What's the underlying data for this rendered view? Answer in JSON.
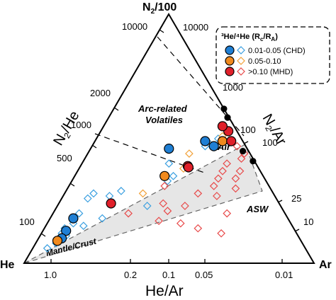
{
  "chart_data": {
    "type": "scatter",
    "subtype": "ternary",
    "vertices": {
      "top": "N₂/100",
      "left": "He",
      "right": "Ar"
    },
    "axis_labels": {
      "left": "N₂/He",
      "right": "N₂/Ar",
      "bottom": "He/Ar"
    },
    "left_ticks": [
      "10000",
      "2000",
      "1000",
      "500",
      "100"
    ],
    "right_ticks": [
      "100",
      "25",
      "10"
    ],
    "bottom_ticks": [
      "1.0",
      "0.2",
      "0.1",
      "0.05",
      "0.01"
    ],
    "inner_ticks": [
      "10000",
      "1000",
      "100"
    ],
    "region_labels": {
      "arc": [
        "Arc-related",
        "Volatiles"
      ],
      "mantle": "Mantle/Crust",
      "air": "Air",
      "asw": "ASW"
    },
    "legend": {
      "title_html": "³He/⁴He (R",
      "title_sub1": "c",
      "title_mid": "/R",
      "title_sub2": "A",
      "title_end": ")",
      "position": "top-right",
      "entries": [
        {
          "label": "0.01-0.05 (CHD)",
          "color": "#1f7fd4",
          "open_color": "#3a9fe0"
        },
        {
          "label": "0.05-0.10",
          "color": "#f08a1e",
          "open_color": "#f2a23a"
        },
        {
          "label": ">0.10 (MHD)",
          "color": "#e0202a",
          "open_color": "#e84a4a"
        }
      ]
    },
    "colors": {
      "chd": "#1f7fd4",
      "chd_open": "#3a9fe0",
      "mid": "#f08a1e",
      "mid_open": "#f2a23a",
      "mhd": "#e0202a",
      "mhd_open": "#e84a4a",
      "field": "#e6e6e6",
      "air_asw": "#000000"
    },
    "reference_points": [
      {
        "name": "Air",
        "top": 0.62,
        "left": 0.0,
        "right": 0.38
      },
      {
        "name": "",
        "top": 0.585,
        "left": 0.005,
        "right": 0.41
      },
      {
        "name": "",
        "top": 0.45,
        "left": 0.02,
        "right": 0.53
      },
      {
        "name": "ASW",
        "top": 0.41,
        "left": 0.005,
        "right": 0.585
      }
    ],
    "series": [
      {
        "name": "0.01-0.05 (CHD)",
        "marker": "circle-filled",
        "color": "#1f7fd4",
        "points": [
          {
            "top": 0.18,
            "left": 0.74,
            "right": 0.08
          },
          {
            "top": 0.13,
            "left": 0.79,
            "right": 0.08
          },
          {
            "top": 0.1,
            "left": 0.82,
            "right": 0.08
          },
          {
            "top": 0.46,
            "left": 0.27,
            "right": 0.27
          },
          {
            "top": 0.49,
            "left": 0.13,
            "right": 0.38
          },
          {
            "top": 0.47,
            "left": 0.11,
            "right": 0.42
          }
        ]
      },
      {
        "name": "0.05-0.10",
        "marker": "circle-filled",
        "color": "#f08a1e",
        "points": [
          {
            "top": 0.09,
            "left": 0.84,
            "right": 0.07
          },
          {
            "top": 0.35,
            "left": 0.34,
            "right": 0.31
          },
          {
            "top": 0.49,
            "left": 0.07,
            "right": 0.44
          }
        ]
      },
      {
        "name": ">0.10 (MHD)",
        "marker": "circle-filled",
        "color": "#e0202a",
        "points": [
          {
            "top": 0.24,
            "left": 0.58,
            "right": 0.18
          },
          {
            "top": 0.39,
            "left": 0.24,
            "right": 0.37
          },
          {
            "top": 0.385,
            "left": 0.24,
            "right": 0.375
          },
          {
            "top": 0.53,
            "left": 0.03,
            "right": 0.44
          },
          {
            "top": 0.55,
            "left": 0.04,
            "right": 0.41
          },
          {
            "top": 0.49,
            "left": 0.04,
            "right": 0.47
          }
        ]
      },
      {
        "name": "0.01-0.05 (CHD) open",
        "marker": "diamond-open",
        "color": "#3a9fe0",
        "points": [
          {
            "top": 0.06,
            "left": 0.89,
            "right": 0.05
          },
          {
            "top": 0.08,
            "left": 0.85,
            "right": 0.07
          },
          {
            "top": 0.12,
            "left": 0.81,
            "right": 0.07
          },
          {
            "top": 0.14,
            "left": 0.79,
            "right": 0.07
          },
          {
            "top": 0.16,
            "left": 0.75,
            "right": 0.09
          },
          {
            "top": 0.2,
            "left": 0.71,
            "right": 0.09
          },
          {
            "top": 0.26,
            "left": 0.65,
            "right": 0.09
          },
          {
            "top": 0.28,
            "left": 0.62,
            "right": 0.1
          },
          {
            "top": 0.15,
            "left": 0.72,
            "right": 0.13
          },
          {
            "top": 0.27,
            "left": 0.57,
            "right": 0.16
          },
          {
            "top": 0.29,
            "left": 0.52,
            "right": 0.19
          },
          {
            "top": 0.18,
            "left": 0.64,
            "right": 0.18
          },
          {
            "top": 0.11,
            "left": 0.8,
            "right": 0.09
          },
          {
            "top": 0.35,
            "left": 0.31,
            "right": 0.34
          },
          {
            "top": 0.4,
            "left": 0.3,
            "right": 0.3
          },
          {
            "top": 0.33,
            "left": 0.34,
            "right": 0.33
          },
          {
            "top": 0.47,
            "left": 0.14,
            "right": 0.39
          },
          {
            "top": 0.48,
            "left": 0.12,
            "right": 0.4
          },
          {
            "top": 0.23,
            "left": 0.46,
            "right": 0.31
          },
          {
            "top": 0.5,
            "left": 0.08,
            "right": 0.42
          }
        ]
      },
      {
        "name": "0.05-0.10 open",
        "marker": "diamond-open",
        "color": "#f2a23a",
        "points": [
          {
            "top": 0.44,
            "left": 0.21,
            "right": 0.35
          },
          {
            "top": 0.38,
            "left": 0.26,
            "right": 0.36
          },
          {
            "top": 0.28,
            "left": 0.45,
            "right": 0.27
          },
          {
            "top": 0.51,
            "left": 0.06,
            "right": 0.43
          }
        ]
      },
      {
        "name": ">0.10 (MHD) open",
        "marker": "diamond-open",
        "color": "#e84a4a",
        "points": [
          {
            "top": 0.2,
            "left": 0.54,
            "right": 0.26
          },
          {
            "top": 0.31,
            "left": 0.36,
            "right": 0.33
          },
          {
            "top": 0.24,
            "left": 0.4,
            "right": 0.36
          },
          {
            "top": 0.21,
            "left": 0.4,
            "right": 0.39
          },
          {
            "top": 0.17,
            "left": 0.45,
            "right": 0.38
          },
          {
            "top": 0.16,
            "left": 0.38,
            "right": 0.46
          },
          {
            "top": 0.14,
            "left": 0.33,
            "right": 0.53
          },
          {
            "top": 0.23,
            "left": 0.33,
            "right": 0.44
          },
          {
            "top": 0.28,
            "left": 0.26,
            "right": 0.46
          },
          {
            "top": 0.31,
            "left": 0.19,
            "right": 0.5
          },
          {
            "top": 0.34,
            "left": 0.16,
            "right": 0.5
          },
          {
            "top": 0.37,
            "left": 0.13,
            "right": 0.5
          },
          {
            "top": 0.4,
            "left": 0.1,
            "right": 0.5
          },
          {
            "top": 0.37,
            "left": 0.07,
            "right": 0.56
          },
          {
            "top": 0.34,
            "left": 0.1,
            "right": 0.56
          },
          {
            "top": 0.3,
            "left": 0.12,
            "right": 0.58
          },
          {
            "top": 0.27,
            "left": 0.2,
            "right": 0.53
          },
          {
            "top": 0.44,
            "left": 0.02,
            "right": 0.54
          },
          {
            "top": 0.42,
            "left": 0.04,
            "right": 0.54
          },
          {
            "top": 0.47,
            "left": 0.03,
            "right": 0.5
          },
          {
            "top": 0.2,
            "left": 0.2,
            "right": 0.6
          },
          {
            "top": 0.12,
            "left": 0.26,
            "right": 0.62
          }
        ]
      }
    ]
  }
}
